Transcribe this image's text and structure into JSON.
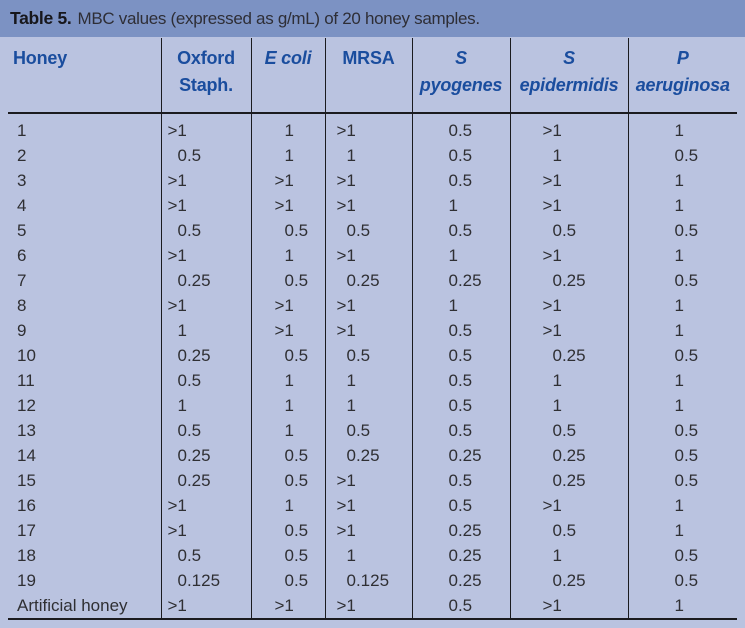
{
  "title": {
    "label": "Table 5.",
    "text": "MBC values (expressed as g/mL) of 20 honey samples."
  },
  "colors": {
    "caption_bar": "#7c92c3",
    "table_background": "#bac3e0",
    "header_text": "#1a4d9e",
    "body_text": "#2f2f33",
    "rule_lines": "#1b1b1f",
    "bottom_bar": "#2b3990"
  },
  "table": {
    "columns": [
      {
        "name": "Honey",
        "lines": [
          "Honey"
        ],
        "italic": false
      },
      {
        "name": "Oxford Staph.",
        "lines": [
          "Oxford",
          "Staph."
        ],
        "italic": false
      },
      {
        "name": "E coli",
        "lines": [
          "E coli"
        ],
        "italic": true
      },
      {
        "name": "MRSA",
        "lines": [
          "MRSA"
        ],
        "italic": false
      },
      {
        "name": "S pyogenes",
        "lines": [
          "S",
          "pyogenes"
        ],
        "italic": true
      },
      {
        "name": "S epidermidis",
        "lines": [
          "S",
          "epidermidis"
        ],
        "italic": true
      },
      {
        "name": "P aeruginosa",
        "lines": [
          "P",
          "aeruginosa"
        ],
        "italic": true
      }
    ],
    "rows": [
      {
        "honey": "1",
        "values": [
          ">1",
          "1",
          ">1",
          "0.5",
          ">1",
          "1"
        ]
      },
      {
        "honey": "2",
        "values": [
          "0.5",
          "1",
          "1",
          "0.5",
          "1",
          "0.5"
        ]
      },
      {
        "honey": "3",
        "values": [
          ">1",
          ">1",
          ">1",
          "0.5",
          ">1",
          "1"
        ]
      },
      {
        "honey": "4",
        "values": [
          ">1",
          ">1",
          ">1",
          "1",
          ">1",
          "1"
        ]
      },
      {
        "honey": "5",
        "values": [
          "0.5",
          "0.5",
          "0.5",
          "0.5",
          "0.5",
          "0.5"
        ]
      },
      {
        "honey": "6",
        "values": [
          ">1",
          "1",
          ">1",
          "1",
          ">1",
          "1"
        ]
      },
      {
        "honey": "7",
        "values": [
          "0.25",
          "0.5",
          "0.25",
          "0.25",
          "0.25",
          "0.5"
        ]
      },
      {
        "honey": "8",
        "values": [
          ">1",
          ">1",
          ">1",
          "1",
          ">1",
          "1"
        ]
      },
      {
        "honey": "9",
        "values": [
          "1",
          ">1",
          ">1",
          "0.5",
          ">1",
          "1"
        ]
      },
      {
        "honey": "10",
        "values": [
          "0.25",
          "0.5",
          "0.5",
          "0.5",
          "0.25",
          "0.5"
        ]
      },
      {
        "honey": "11",
        "values": [
          "0.5",
          "1",
          "1",
          "0.5",
          "1",
          "1"
        ]
      },
      {
        "honey": "12",
        "values": [
          "1",
          "1",
          "1",
          "0.5",
          "1",
          "1"
        ]
      },
      {
        "honey": "13",
        "values": [
          "0.5",
          "1",
          "0.5",
          "0.5",
          "0.5",
          "0.5"
        ]
      },
      {
        "honey": "14",
        "values": [
          "0.25",
          "0.5",
          "0.25",
          "0.25",
          "0.25",
          "0.5"
        ]
      },
      {
        "honey": "15",
        "values": [
          "0.25",
          "0.5",
          ">1",
          "0.5",
          "0.25",
          "0.5"
        ]
      },
      {
        "honey": "16",
        "values": [
          ">1",
          "1",
          ">1",
          "0.5",
          ">1",
          "1"
        ]
      },
      {
        "honey": "17",
        "values": [
          ">1",
          "0.5",
          ">1",
          "0.25",
          "0.5",
          "1"
        ]
      },
      {
        "honey": "18",
        "values": [
          "0.5",
          "0.5",
          "1",
          "0.25",
          "1",
          "0.5"
        ]
      },
      {
        "honey": "19",
        "values": [
          "0.125",
          "0.5",
          "0.125",
          "0.25",
          "0.25",
          "0.5"
        ]
      },
      {
        "honey": "Artificial honey",
        "values": [
          ">1",
          ">1",
          ">1",
          "0.5",
          ">1",
          "1"
        ]
      }
    ]
  }
}
